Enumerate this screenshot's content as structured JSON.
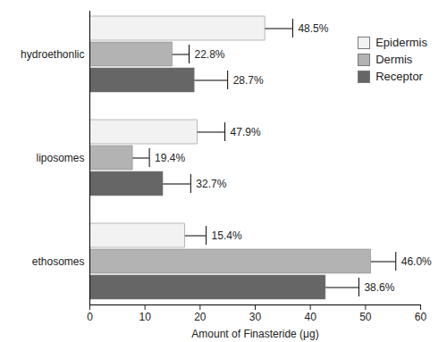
{
  "chart_data": {
    "type": "bar",
    "orientation": "horizontal",
    "categories": [
      "hydroethonlic",
      "liposomes",
      "ethosomes"
    ],
    "series": [
      {
        "name": "Epidermis",
        "color": "#f2f2f2",
        "values": [
          31.8,
          19.5,
          17.3
        ],
        "errors": [
          5.0,
          5.0,
          3.8
        ],
        "percent_labels": [
          "48.5%",
          "47.9%",
          "15.4%"
        ]
      },
      {
        "name": "Dermis",
        "color": "#b3b3b3",
        "values": [
          15.0,
          7.8,
          51.0
        ],
        "errors": [
          3.0,
          3.0,
          4.5
        ],
        "percent_labels": [
          "22.8%",
          "19.4%",
          "46.0%"
        ]
      },
      {
        "name": "Receptor",
        "color": "#666666",
        "values": [
          19.0,
          13.3,
          42.8
        ],
        "errors": [
          6.0,
          5.0,
          6.0
        ],
        "percent_labels": [
          "28.7%",
          "32.7%",
          "38.6%"
        ]
      }
    ],
    "xlabel": "Amount of Finasteride (μg)",
    "xlim": [
      0,
      60
    ],
    "xticks": [
      0,
      10,
      20,
      30,
      40,
      50,
      60
    ],
    "grid": false,
    "legend": "upper right"
  }
}
